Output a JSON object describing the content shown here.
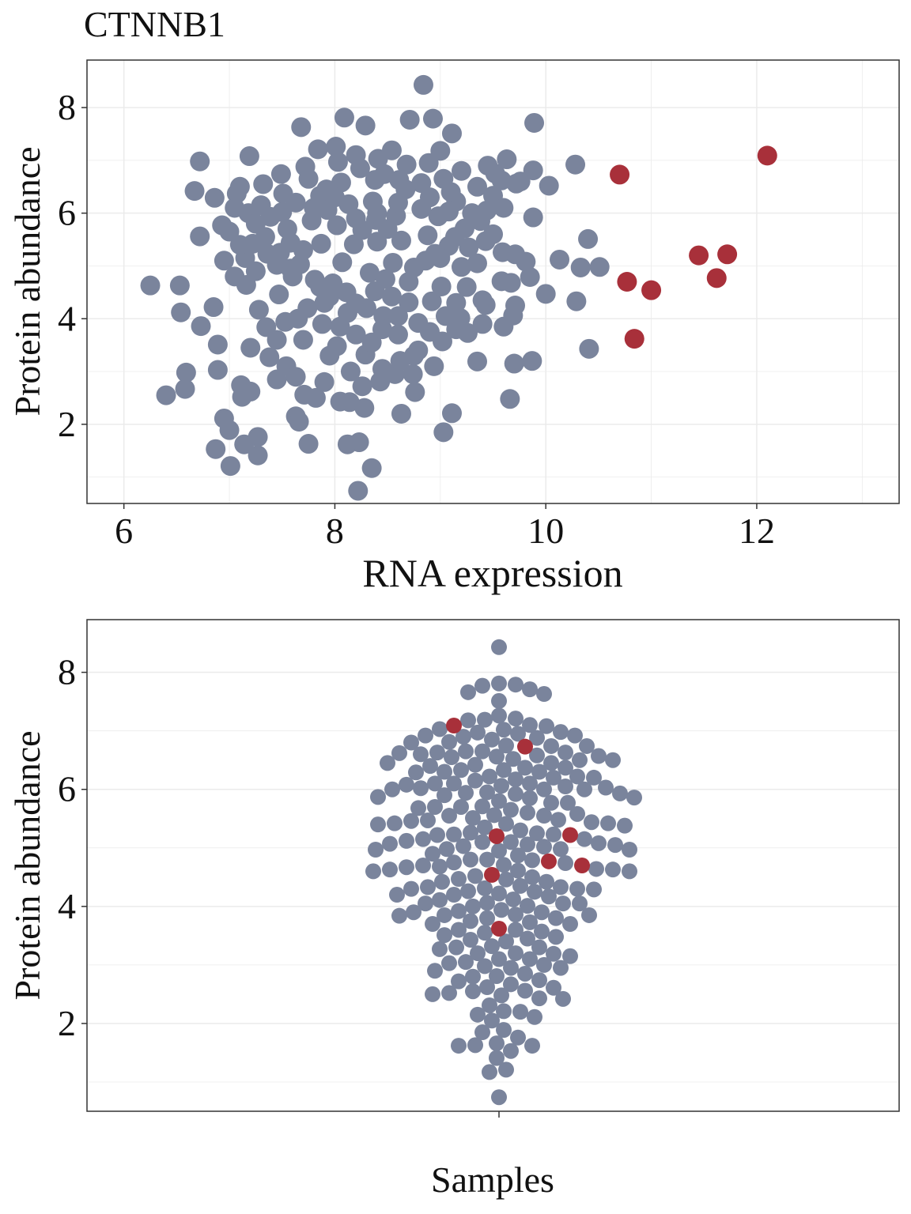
{
  "title": "CTNNB1",
  "colors": {
    "normal": "#7a849c",
    "highlight": "#a8303a",
    "grid": "#ebebeb",
    "frame": "#333333"
  },
  "chart_data": [
    {
      "type": "scatter",
      "title": "CTNNB1",
      "xlabel": "RNA expression",
      "ylabel": "Protein abundance",
      "xlim": [
        5.65,
        13.35
      ],
      "ylim": [
        0.5,
        8.9
      ],
      "xticks": [
        6,
        8,
        10,
        12
      ],
      "yticks": [
        2,
        4,
        6,
        8
      ],
      "grid": true,
      "series": [
        {
          "points": [
            [
              8.84,
              8.43
            ],
            [
              8.09,
              7.81
            ],
            [
              8.29,
              7.66
            ],
            [
              8.71,
              7.77
            ],
            [
              8.93,
              7.79
            ],
            [
              9.89,
              7.71
            ],
            [
              7.68,
              7.63
            ],
            [
              9.11,
              7.51
            ],
            [
              7.19,
              7.08
            ],
            [
              6.72,
              6.98
            ],
            [
              9.0,
              7.18
            ],
            [
              10.28,
              6.92
            ],
            [
              9.63,
              7.02
            ],
            [
              9.88,
              6.81
            ],
            [
              6.67,
              6.42
            ],
            [
              6.86,
              6.29
            ],
            [
              6.93,
              5.77
            ],
            [
              6.72,
              5.56
            ],
            [
              9.38,
              5.85
            ],
            [
              9.88,
              5.92
            ],
            [
              10.03,
              6.52
            ],
            [
              9.76,
              6.6
            ],
            [
              10.4,
              5.51
            ],
            [
              10.13,
              5.12
            ],
            [
              10.33,
              4.97
            ],
            [
              10.51,
              4.98
            ],
            [
              6.25,
              4.63
            ],
            [
              6.53,
              4.63
            ],
            [
              6.54,
              4.12
            ],
            [
              6.73,
              3.86
            ],
            [
              6.85,
              4.22
            ],
            [
              6.89,
              3.51
            ],
            [
              6.89,
              3.03
            ],
            [
              7.11,
              2.74
            ],
            [
              6.59,
              2.98
            ],
            [
              6.58,
              2.67
            ],
            [
              6.4,
              2.55
            ],
            [
              6.95,
              2.11
            ],
            [
              7.0,
              1.89
            ],
            [
              6.87,
              1.53
            ],
            [
              7.01,
              1.21
            ],
            [
              7.14,
              1.62
            ],
            [
              7.27,
              1.76
            ],
            [
              7.27,
              1.41
            ],
            [
              7.12,
              2.52
            ],
            [
              7.2,
              2.62
            ],
            [
              7.63,
              2.15
            ],
            [
              7.66,
              2.05
            ],
            [
              7.75,
              1.63
            ],
            [
              8.12,
              1.62
            ],
            [
              8.23,
              1.66
            ],
            [
              8.35,
              1.17
            ],
            [
              8.22,
              0.74
            ],
            [
              8.28,
              2.31
            ],
            [
              8.63,
              2.2
            ],
            [
              8.76,
              2.61
            ],
            [
              9.03,
              1.85
            ],
            [
              9.11,
              2.21
            ],
            [
              9.35,
              3.19
            ],
            [
              9.66,
              2.48
            ],
            [
              9.7,
              3.15
            ],
            [
              9.87,
              3.2
            ],
            [
              10.41,
              3.43
            ],
            [
              10.29,
              4.33
            ],
            [
              10.0,
              4.47
            ],
            [
              9.6,
              3.85
            ],
            [
              9.69,
              4.06
            ],
            [
              9.71,
              4.25
            ],
            [
              9.43,
              4.26
            ],
            [
              9.19,
              4.01
            ],
            [
              9.26,
              3.73
            ],
            [
              9.4,
              3.9
            ],
            [
              9.85,
              4.79
            ],
            [
              9.58,
              4.71
            ],
            [
              9.67,
              4.68
            ],
            [
              9.59,
              5.26
            ],
            [
              9.43,
              5.47
            ],
            [
              9.71,
              5.22
            ],
            [
              9.81,
              5.08
            ],
            [
              9.27,
              5.35
            ],
            [
              9.44,
              6.05
            ],
            [
              9.5,
              6.33
            ],
            [
              9.52,
              6.75
            ],
            [
              9.58,
              6.62
            ],
            [
              9.72,
              6.56
            ],
            [
              8.54,
              7.19
            ],
            [
              8.01,
              7.26
            ],
            [
              7.84,
              7.21
            ],
            [
              7.32,
              6.55
            ],
            [
              7.49,
              6.74
            ],
            [
              7.07,
              6.37
            ],
            [
              7.18,
              6.0
            ],
            [
              7.22,
              5.42
            ],
            [
              7.36,
              5.23
            ],
            [
              7.45,
              5.02
            ],
            [
              7.16,
              4.64
            ],
            [
              7.47,
              4.46
            ],
            [
              7.28,
              4.17
            ],
            [
              7.53,
              3.94
            ],
            [
              7.35,
              3.84
            ],
            [
              7.2,
              3.45
            ],
            [
              7.38,
              3.27
            ],
            [
              7.54,
              3.1
            ],
            [
              7.45,
              2.85
            ],
            [
              7.63,
              2.9
            ],
            [
              7.71,
              2.56
            ],
            [
              7.82,
              2.5
            ],
            [
              8.05,
              2.43
            ],
            [
              8.14,
              2.42
            ],
            [
              8.26,
              2.72
            ],
            [
              8.43,
              2.81
            ],
            [
              8.57,
              2.95
            ],
            [
              8.62,
              3.2
            ],
            [
              8.79,
              3.4
            ],
            [
              8.94,
              3.1
            ],
            [
              8.74,
              2.95
            ],
            [
              8.29,
              3.32
            ],
            [
              8.02,
              3.48
            ],
            [
              7.88,
              3.9
            ],
            [
              7.74,
              4.2
            ],
            [
              8.12,
              4.11
            ],
            [
              8.46,
              4.05
            ],
            [
              8.79,
              3.92
            ],
            [
              9.02,
              3.57
            ],
            [
              9.15,
              3.8
            ],
            [
              8.92,
              4.33
            ],
            [
              9.01,
              4.61
            ],
            [
              9.2,
              4.98
            ],
            [
              9.08,
              5.38
            ],
            [
              9.23,
              5.71
            ],
            [
              9.15,
              6.22
            ],
            [
              9.03,
              6.65
            ],
            [
              8.68,
              6.92
            ],
            [
              8.41,
              7.03
            ],
            [
              8.03,
              6.97
            ],
            [
              7.72,
              6.88
            ],
            [
              7.51,
              6.37
            ],
            [
              7.39,
              5.93
            ],
            [
              7.58,
              5.44
            ],
            [
              7.67,
              5.03
            ],
            [
              7.81,
              4.74
            ],
            [
              7.95,
              4.42
            ],
            [
              8.2,
              4.29
            ],
            [
              8.54,
              4.42
            ],
            [
              8.7,
              4.7
            ],
            [
              8.86,
              5.1
            ],
            [
              8.88,
              5.58
            ],
            [
              8.82,
              6.08
            ],
            [
              8.67,
              6.45
            ],
            [
              8.38,
              6.63
            ],
            [
              8.06,
              6.58
            ],
            [
              7.86,
              6.33
            ],
            [
              7.78,
              5.86
            ],
            [
              7.87,
              5.42
            ],
            [
              8.07,
              5.07
            ],
            [
              8.33,
              4.87
            ],
            [
              8.55,
              5.06
            ],
            [
              8.63,
              5.48
            ],
            [
              8.58,
              5.95
            ],
            [
              8.36,
              6.22
            ],
            [
              8.13,
              6.17
            ],
            [
              8.02,
              5.77
            ],
            [
              8.18,
              5.41
            ],
            [
              8.4,
              5.46
            ],
            [
              8.39,
              5.87
            ],
            [
              8.26,
              5.68
            ],
            [
              7.93,
              6.06
            ],
            [
              8.47,
              6.74
            ],
            [
              8.82,
              6.57
            ],
            [
              9.08,
              6.03
            ],
            [
              8.95,
              5.23
            ],
            [
              8.7,
              4.31
            ],
            [
              8.38,
              4.52
            ],
            [
              7.98,
              4.67
            ],
            [
              7.6,
              4.8
            ],
            [
              7.55,
              5.7
            ],
            [
              7.63,
              6.2
            ],
            [
              7.92,
              6.45
            ],
            [
              8.24,
              6.85
            ],
            [
              8.61,
              6.63
            ],
            [
              8.98,
              5.94
            ],
            [
              7.3,
              6.15
            ],
            [
              7.25,
              5.8
            ],
            [
              7.34,
              5.55
            ],
            [
              7.48,
              5.25
            ],
            [
              7.58,
              4.95
            ],
            [
              7.86,
              4.6
            ],
            [
              8.11,
              4.5
            ],
            [
              8.48,
              4.75
            ],
            [
              8.75,
              4.97
            ],
            [
              9.0,
              5.15
            ],
            [
              9.14,
              5.55
            ],
            [
              9.1,
              6.4
            ],
            [
              8.89,
              6.95
            ],
            [
              8.2,
              7.1
            ],
            [
              7.75,
              6.65
            ],
            [
              7.5,
              6.02
            ],
            [
              7.7,
              5.3
            ],
            [
              8.3,
              4.2
            ],
            [
              8.6,
              3.7
            ],
            [
              8.35,
              3.55
            ],
            [
              7.95,
              3.3
            ],
            [
              7.7,
              3.6
            ],
            [
              7.45,
              3.6
            ],
            [
              7.9,
              2.8
            ],
            [
              8.45,
              3.05
            ],
            [
              8.75,
              3.3
            ],
            [
              8.15,
              3.0
            ],
            [
              7.15,
              5.15
            ],
            [
              7.05,
              4.8
            ],
            [
              7.25,
              4.9
            ],
            [
              6.95,
              5.1
            ],
            [
              7.1,
              5.4
            ],
            [
              7.0,
              5.65
            ],
            [
              7.05,
              6.1
            ],
            [
              7.1,
              6.5
            ],
            [
              8.4,
              6.0
            ],
            [
              8.5,
              5.7
            ],
            [
              8.2,
              5.9
            ],
            [
              8.0,
              6.3
            ],
            [
              7.8,
              6.1
            ],
            [
              8.6,
              6.2
            ],
            [
              8.9,
              6.3
            ],
            [
              9.2,
              6.8
            ],
            [
              9.35,
              6.5
            ],
            [
              9.45,
              6.9
            ],
            [
              9.3,
              6.0
            ],
            [
              9.6,
              6.1
            ],
            [
              9.5,
              5.6
            ],
            [
              9.35,
              5.05
            ],
            [
              9.25,
              4.6
            ],
            [
              9.4,
              4.35
            ],
            [
              9.15,
              4.3
            ],
            [
              9.05,
              4.05
            ],
            [
              8.9,
              3.75
            ],
            [
              8.6,
              4.05
            ],
            [
              8.45,
              3.8
            ],
            [
              8.2,
              3.7
            ],
            [
              8.05,
              3.85
            ],
            [
              7.9,
              4.3
            ],
            [
              7.65,
              4.0
            ]
          ]
        },
        {
          "points": [
            [
              12.1,
              7.09
            ],
            [
              10.7,
              6.73
            ],
            [
              11.45,
              5.2
            ],
            [
              11.72,
              5.22
            ],
            [
              11.62,
              4.77
            ],
            [
              10.77,
              4.7
            ],
            [
              11.0,
              4.54
            ],
            [
              10.84,
              3.62
            ]
          ]
        }
      ]
    },
    {
      "type": "scatter",
      "xlabel": "Samples",
      "ylabel": "Protein abundance",
      "ylim": [
        0.5,
        8.9
      ],
      "yticks": [
        2,
        4,
        6,
        8
      ],
      "grid": true,
      "series": [
        {
          "values_from": "chart_data.0.series.0.points"
        },
        {
          "values_from": "chart_data.0.series.1.points"
        }
      ]
    }
  ]
}
